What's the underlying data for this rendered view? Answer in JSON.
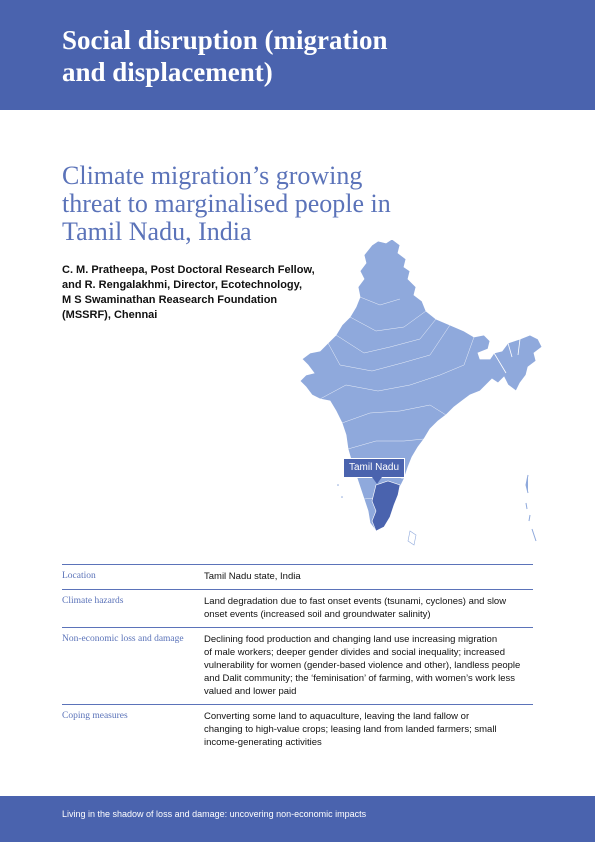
{
  "header": {
    "title_line1": "Social disruption (migration",
    "title_line2": "and displacement)"
  },
  "article": {
    "title_line1": "Climate migration’s growing",
    "title_line2": "threat to marginalised people in",
    "title_line3": "Tamil Nadu, India",
    "byline_line1": "C. M. Pratheepa, Post Doctoral Research Fellow,",
    "byline_line2": "and R. Rengalakhmi, Director, Ecotechnology,",
    "byline_line3": "M S Swaminathan Reasearch Foundation",
    "byline_line4": "(MSSRF), Chennai"
  },
  "map": {
    "callout_label": "Tamil Nadu",
    "fill_color": "#8fa9dc",
    "accent_color": "#4a63ae"
  },
  "table": {
    "rows": [
      {
        "label": "Location",
        "value_lines": [
          "Tamil Nadu state, India"
        ]
      },
      {
        "label": "Climate hazards",
        "value_lines": [
          "Land degradation due to fast onset events (tsunami, cyclones) and slow",
          "onset events (increased soil and groundwater salinity)"
        ]
      },
      {
        "label": "Non-economic loss and damage",
        "value_lines": [
          "Declining food production and changing land use increasing migration",
          "of male workers; deeper gender divides and social inequality; increased",
          "vulnerability for women (gender-based violence and other), landless people",
          "and Dalit community; the ‘feminisation’ of farming, with women’s work less",
          "valued and lower paid"
        ]
      },
      {
        "label": "Coping measures",
        "value_lines": [
          "Converting some land to aquaculture, leaving the land fallow or",
          "changing to high-value crops; leasing land from landed farmers; small",
          "income-generating activities"
        ]
      }
    ]
  },
  "footer": {
    "text": "Living in the shadow of loss and damage: uncovering non-economic impacts"
  }
}
